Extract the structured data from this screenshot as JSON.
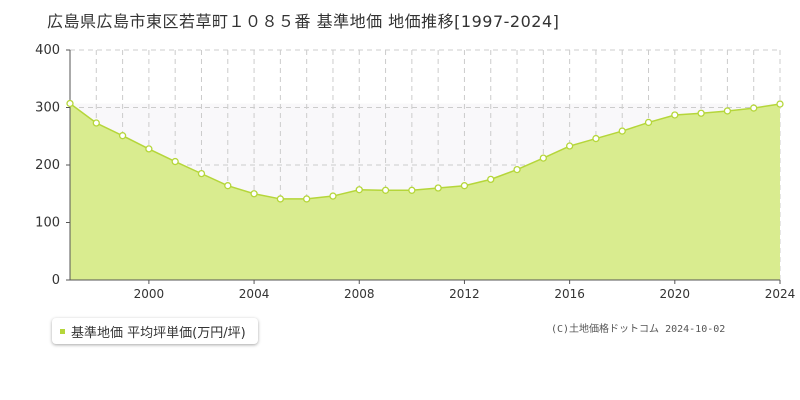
{
  "title": "広島県広島市東区若草町１０８５番 基準地価 地価推移[1997-2024]",
  "legend": {
    "label": "基準地価 平均坪単価(万円/坪)"
  },
  "copyright": "(C)土地価格ドットコム 2024-10-02",
  "colors": {
    "fill": "#d9ec8f",
    "line": "#b5d63a",
    "marker_fill": "#ffffff",
    "band": "#f9f8fa"
  },
  "chart_data": {
    "type": "area",
    "ylim": [
      0,
      400
    ],
    "xlim": [
      1997,
      2024
    ],
    "yticks": [
      0,
      100,
      200,
      300,
      400
    ],
    "xticks": [
      2000,
      2004,
      2008,
      2012,
      2016,
      2020,
      2024
    ],
    "grid": true,
    "legend_position": "bottom-left",
    "series": [
      {
        "name": "基準地価 平均坪単価(万円/坪)",
        "x": [
          1997,
          1998,
          1999,
          2000,
          2001,
          2002,
          2003,
          2004,
          2005,
          2006,
          2007,
          2008,
          2009,
          2010,
          2011,
          2012,
          2013,
          2014,
          2015,
          2016,
          2017,
          2018,
          2019,
          2020,
          2021,
          2022,
          2023,
          2024
        ],
        "values": [
          307,
          273,
          251,
          228,
          206,
          185,
          164,
          150,
          141,
          141,
          146,
          157,
          156,
          156,
          160,
          164,
          175,
          192,
          212,
          233,
          246,
          259,
          274,
          287,
          290,
          294,
          299,
          306
        ]
      }
    ]
  }
}
